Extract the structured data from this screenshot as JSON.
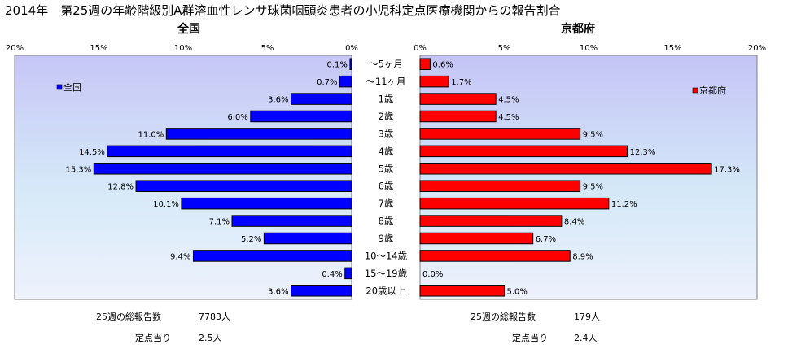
{
  "title": "2014年　第25週の年齢階級別A群溶血性レンサ球菌咽頭炎患者の小児科定点医療機関からの報告割合",
  "chart_data": {
    "type": "bar",
    "orientation": "horizontal",
    "layout": "back-to-back",
    "categories": [
      "～5ヶ月",
      "～11ヶ月",
      "1歳",
      "2歳",
      "3歳",
      "4歳",
      "5歳",
      "6歳",
      "7歳",
      "8歳",
      "9歳",
      "10～14歳",
      "15～19歳",
      "20歳以上"
    ],
    "xlim": [
      0,
      20
    ],
    "ticks": [
      0,
      5,
      10,
      15,
      20
    ],
    "tick_suffix": "%",
    "grid": false,
    "series": [
      {
        "name": "全国",
        "panel_title": "全国",
        "side": "left",
        "color": "#0000ff",
        "values": [
          0.1,
          0.7,
          3.6,
          6.0,
          11.0,
          14.5,
          15.3,
          12.8,
          10.1,
          7.1,
          5.2,
          9.4,
          0.4,
          3.6
        ],
        "labels": [
          "0.1%",
          "0.7%",
          "3.6%",
          "6.0%",
          "11.0%",
          "14.5%",
          "15.3%",
          "12.8%",
          "10.1%",
          "7.1%",
          "5.2%",
          "9.4%",
          "0.4%",
          "3.6%"
        ]
      },
      {
        "name": "京都府",
        "panel_title": "京都府",
        "side": "right",
        "color": "#ff0000",
        "values": [
          0.6,
          1.7,
          4.5,
          4.5,
          9.5,
          12.3,
          17.3,
          9.5,
          11.2,
          8.4,
          6.7,
          8.9,
          0.0,
          5.0
        ],
        "labels": [
          "0.6%",
          "1.7%",
          "4.5%",
          "4.5%",
          "9.5%",
          "12.3%",
          "17.3%",
          "9.5%",
          "11.2%",
          "8.4%",
          "6.7%",
          "8.9%",
          "0.0%",
          "5.0%"
        ]
      }
    ],
    "legend": [
      "top-left of left panel",
      "top-right of right panel"
    ]
  },
  "footer": {
    "national": {
      "total_label": "25週の総報告数",
      "total_value": "7783人",
      "per_label": "定点当り",
      "per_value": "2.5人"
    },
    "kyoto": {
      "total_label": "25週の総報告数",
      "total_value": "179人",
      "per_label": "定点当り",
      "per_value": "2.4人"
    }
  }
}
